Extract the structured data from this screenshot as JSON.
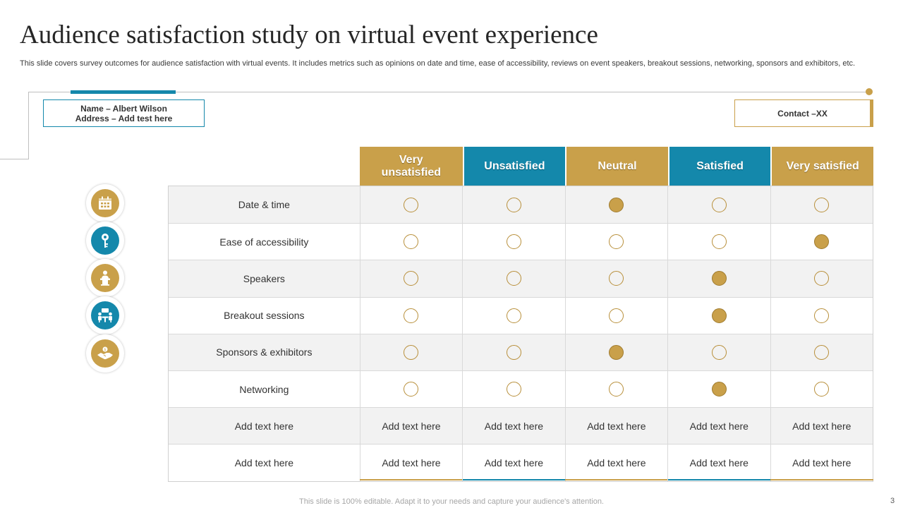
{
  "title": "Audience satisfaction  study on virtual event experience",
  "subtitle": "This slide covers survey outcomes for audience satisfaction with virtual events. It includes metrics such as opinions on date and time, ease of accessibility, reviews on event speakers, breakout sessions, networking, sponsors and exhibitors, etc.",
  "name_box": {
    "line1": "Name – Albert Wilson",
    "line2": "Address – Add test here"
  },
  "contact_box": {
    "label": "Contact –XX"
  },
  "colors": {
    "gold": "#c9a04a",
    "blue": "#1488ab"
  },
  "icons": [
    "calendar-icon",
    "key-icon",
    "speaker-podium-icon",
    "meeting-icon",
    "handshake-icon"
  ],
  "columns": [
    {
      "label": "Very unsatisfied",
      "color": "#c9a04a"
    },
    {
      "label": "Unsatisfied",
      "color": "#1488ab"
    },
    {
      "label": "Neutral",
      "color": "#c9a04a"
    },
    {
      "label": "Satisfied",
      "color": "#1488ab"
    },
    {
      "label": "Very satisfied",
      "color": "#c9a04a"
    }
  ],
  "rows": [
    {
      "label": "Date & time",
      "selected": 2
    },
    {
      "label": "Ease  of accessibility",
      "selected": 4
    },
    {
      "label": "Speakers",
      "selected": 3
    },
    {
      "label": "Breakout sessions",
      "selected": 3
    },
    {
      "label": "Sponsors & exhibitors",
      "selected": 2
    },
    {
      "label": "Networking",
      "selected": 3
    }
  ],
  "text_rows": [
    {
      "label": "Add text here",
      "cells": [
        "Add text here",
        "Add text here",
        "Add text here",
        "Add text here",
        "Add text here"
      ]
    },
    {
      "label": "Add text here",
      "cells": [
        "Add text here",
        "Add text here",
        "Add text here",
        "Add text here",
        "Add text here"
      ]
    }
  ],
  "footer": "This slide is 100% editable. Adapt it to your needs and capture your audience's attention.",
  "page_number": "3"
}
